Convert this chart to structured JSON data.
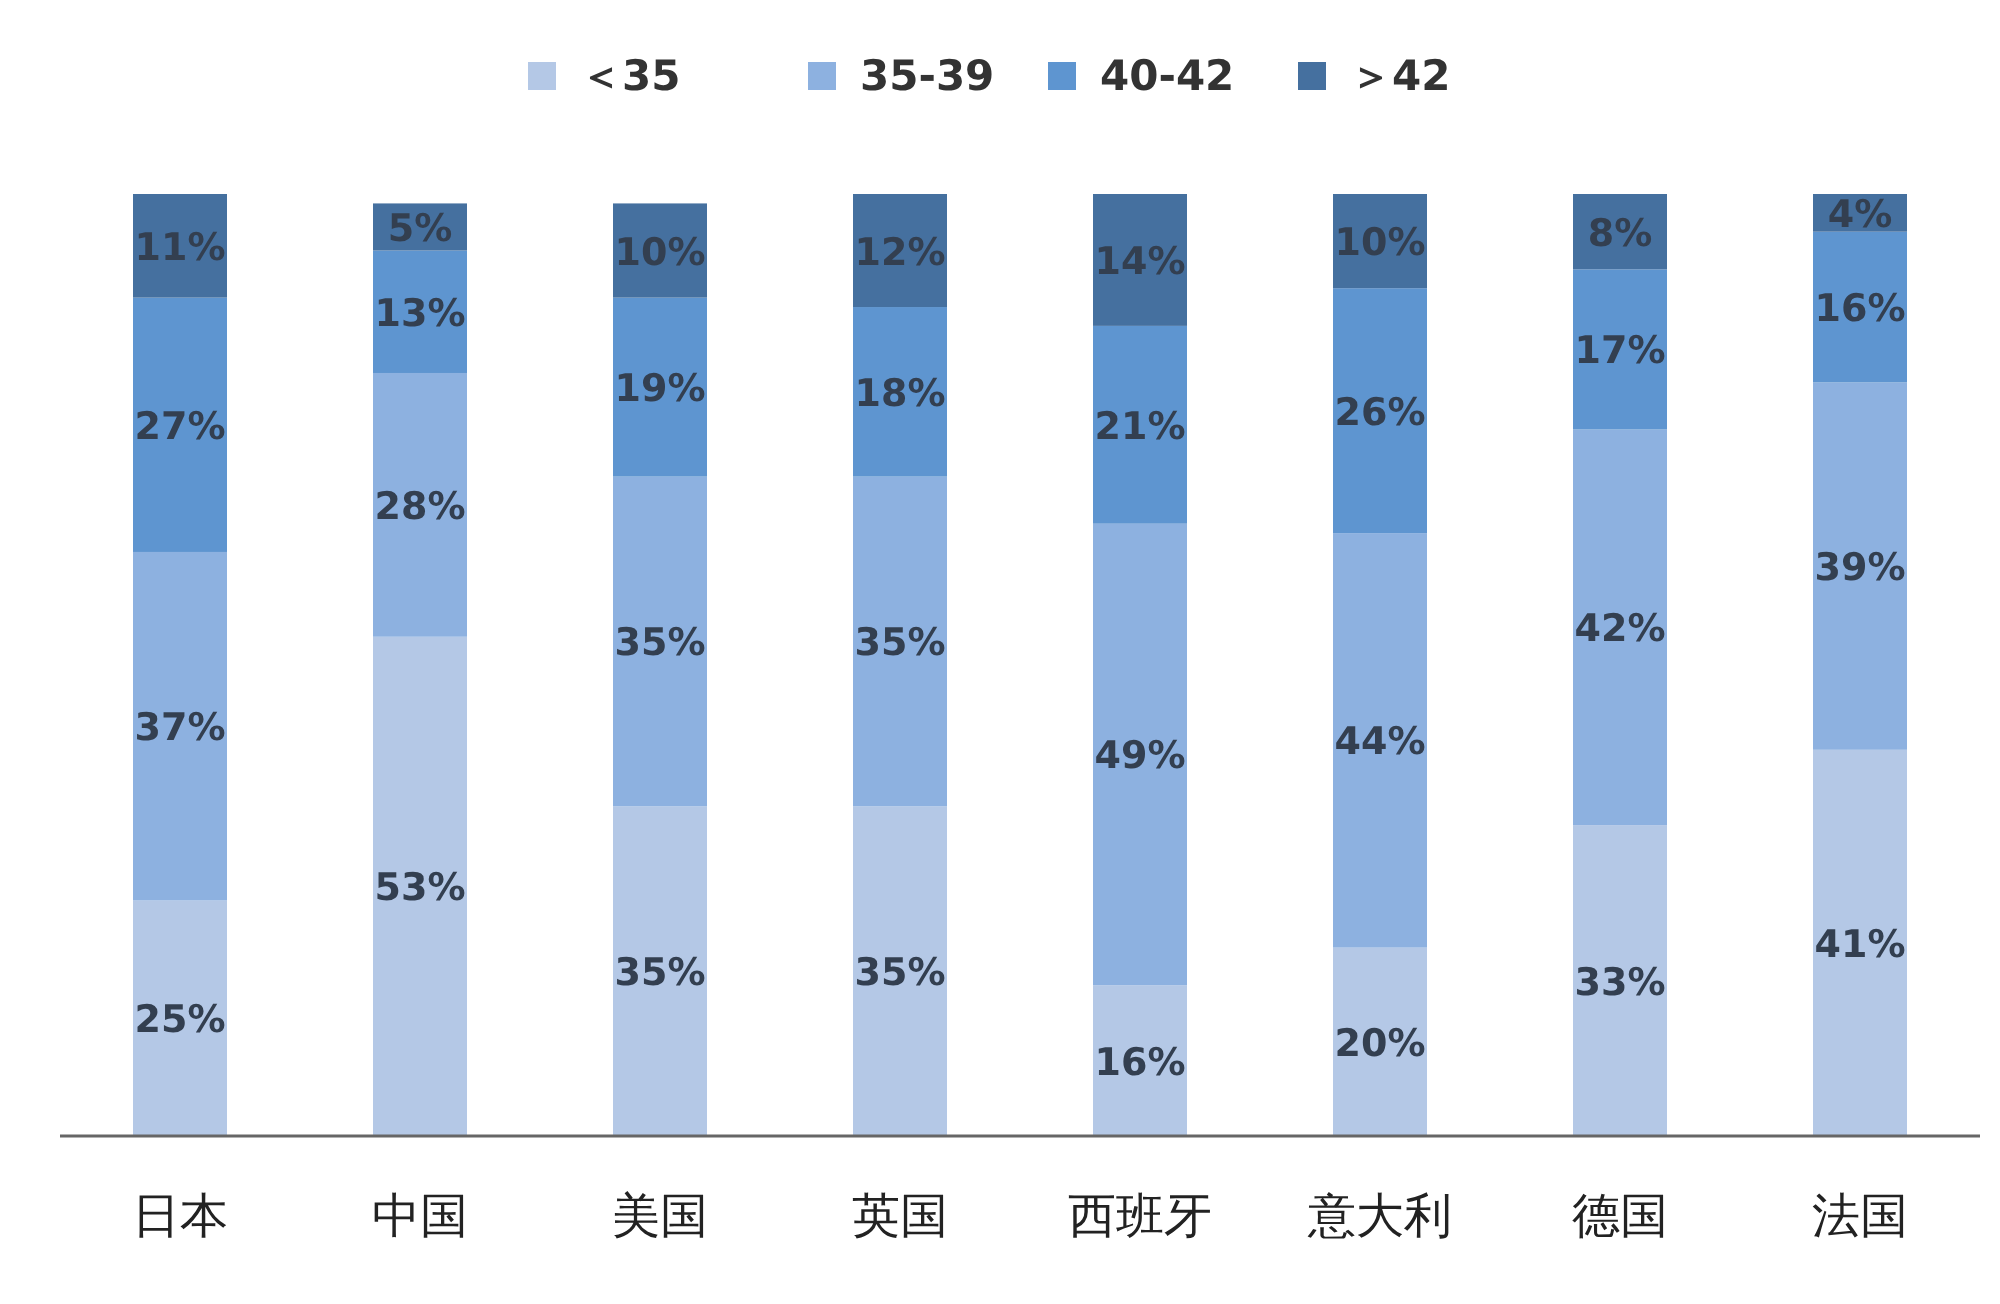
{
  "chart_data": {
    "type": "bar",
    "stacked": true,
    "legend": "top",
    "categories": [
      "日本",
      "中国",
      "美国",
      "英国",
      "西班牙",
      "意大利",
      "德国",
      "法国"
    ],
    "series": [
      {
        "name": "＜35",
        "color": "#b4c8e6",
        "values": [
          25,
          53,
          35,
          35,
          16,
          20,
          33,
          41
        ],
        "value_labels": [
          "25%",
          "53%",
          "35%",
          "35%",
          "16%",
          "20%",
          "33%",
          "41%"
        ]
      },
      {
        "name": "35-39",
        "color": "#8db1e0",
        "values": [
          37,
          28,
          35,
          35,
          49,
          44,
          42,
          39
        ],
        "value_labels": [
          "37%",
          "28%",
          "35%",
          "35%",
          "49%",
          "44%",
          "42%",
          "39%"
        ]
      },
      {
        "name": "40-42",
        "color": "#5e95d0",
        "values": [
          27,
          13,
          19,
          18,
          21,
          26,
          17,
          16
        ],
        "value_labels": [
          "27%",
          "13%",
          "19%",
          "18%",
          "21%",
          "26%",
          "17%",
          "16%"
        ]
      },
      {
        "name": "＞42",
        "color": "#45709f",
        "values": [
          11,
          5,
          10,
          12,
          14,
          10,
          8,
          4
        ],
        "value_labels": [
          "11%",
          "5%",
          "10%",
          "12%",
          "14%",
          "10%",
          "8%",
          "4%"
        ]
      }
    ]
  }
}
